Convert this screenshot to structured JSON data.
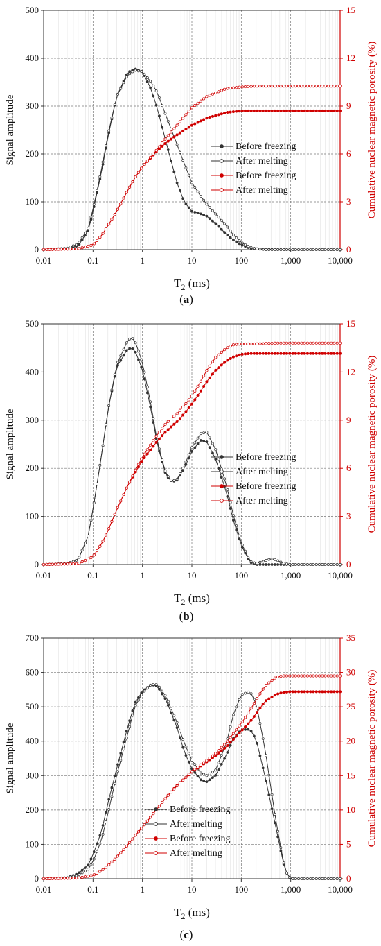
{
  "chart_data": [
    {
      "type": "line",
      "panel_label": "a",
      "x_scale": "log",
      "xlim": [
        0.01,
        10000
      ],
      "x_ticks": [
        "0.01",
        "0.1",
        "1",
        "10",
        "100",
        "1,000",
        "10,000"
      ],
      "xlabel_main": "T",
      "xlabel_sub": "2",
      "xlabel_tail": " (ms)",
      "ylabel_left": "Signal amplitude",
      "ylim_left": [
        0,
        500
      ],
      "y_ticks_left": [
        "0",
        "100",
        "200",
        "300",
        "400",
        "500"
      ],
      "ylabel_right": "Cumulative nuclear magnetic porosity (%)",
      "ylim_right": [
        0,
        15
      ],
      "y_ticks_right": [
        "0",
        "3",
        "6",
        "9",
        "12",
        "15"
      ],
      "grid": true,
      "legend_placement": "center-right",
      "colors": {
        "black": "#333333",
        "red": "#d00000"
      },
      "series": [
        {
          "name": "Before freezing",
          "axis": "left",
          "color": "#333333",
          "marker": "filled",
          "x": [
            0.01,
            0.03,
            0.05,
            0.08,
            0.1,
            0.15,
            0.2,
            0.3,
            0.5,
            0.7,
            1,
            1.5,
            2,
            3,
            5,
            7,
            10,
            15,
            20,
            30,
            50,
            70,
            100,
            150,
            200,
            300,
            1000,
            10000
          ],
          "y": [
            0,
            2,
            8,
            40,
            80,
            165,
            235,
            320,
            370,
            378,
            372,
            335,
            295,
            225,
            140,
            100,
            80,
            75,
            70,
            55,
            32,
            20,
            10,
            3,
            2,
            1,
            0,
            0
          ]
        },
        {
          "name": "After melting",
          "axis": "left",
          "color": "#333333",
          "marker": "open",
          "x": [
            0.01,
            0.03,
            0.05,
            0.08,
            0.1,
            0.15,
            0.2,
            0.3,
            0.5,
            0.7,
            1,
            1.5,
            2,
            3,
            5,
            7,
            10,
            15,
            20,
            30,
            50,
            70,
            100,
            150,
            200,
            300,
            1000,
            10000
          ],
          "y": [
            0,
            3,
            12,
            45,
            85,
            170,
            240,
            320,
            365,
            375,
            372,
            350,
            328,
            280,
            220,
            180,
            140,
            112,
            95,
            75,
            50,
            30,
            15,
            5,
            2,
            0,
            0,
            0
          ]
        },
        {
          "name": "Before freezing",
          "axis": "right",
          "color": "#d00000",
          "marker": "filled",
          "x": [
            0.01,
            0.05,
            0.1,
            0.15,
            0.2,
            0.3,
            0.5,
            0.7,
            1,
            2,
            3,
            5,
            10,
            20,
            50,
            100,
            200,
            10000
          ],
          "y": [
            0,
            0.05,
            0.3,
            0.9,
            1.5,
            2.4,
            3.7,
            4.5,
            5.2,
            6.2,
            6.7,
            7.2,
            7.8,
            8.25,
            8.6,
            8.7,
            8.7,
            8.7
          ]
        },
        {
          "name": "After melting",
          "axis": "right",
          "color": "#d00000",
          "marker": "open",
          "x": [
            0.01,
            0.05,
            0.1,
            0.15,
            0.2,
            0.3,
            0.5,
            0.7,
            1,
            2,
            3,
            5,
            10,
            20,
            50,
            100,
            200,
            10000
          ],
          "y": [
            0,
            0.05,
            0.3,
            0.9,
            1.5,
            2.4,
            3.7,
            4.5,
            5.2,
            6.3,
            7.0,
            7.8,
            8.9,
            9.6,
            10.1,
            10.2,
            10.25,
            10.25
          ]
        }
      ]
    },
    {
      "type": "line",
      "panel_label": "b",
      "x_scale": "log",
      "xlim": [
        0.01,
        10000
      ],
      "x_ticks": [
        "0.01",
        "0.1",
        "1",
        "10",
        "100",
        "1,000",
        "10,000"
      ],
      "xlabel_main": "T",
      "xlabel_sub": "2",
      "xlabel_tail": " (ms)",
      "ylabel_left": "Signal amplitude",
      "ylim_left": [
        0,
        500
      ],
      "y_ticks_left": [
        "0",
        "100",
        "200",
        "300",
        "400",
        "500"
      ],
      "ylabel_right": "Cumulative nuclear magnetic porosity (%)",
      "ylim_right": [
        0,
        15
      ],
      "y_ticks_right": [
        "0",
        "3",
        "6",
        "9",
        "12",
        "15"
      ],
      "grid": true,
      "legend_placement": "center-right",
      "colors": {
        "black": "#333333",
        "red": "#d00000"
      },
      "series": [
        {
          "name": "Before freezing",
          "axis": "left",
          "color": "#333333",
          "marker": "filled",
          "x": [
            0.01,
            0.03,
            0.05,
            0.08,
            0.1,
            0.15,
            0.2,
            0.3,
            0.5,
            0.6,
            0.7,
            1,
            1.5,
            2,
            3,
            4,
            5,
            7,
            10,
            15,
            20,
            30,
            50,
            70,
            100,
            150,
            200,
            1000,
            10000
          ],
          "y": [
            0,
            2,
            10,
            60,
            115,
            230,
            320,
            410,
            448,
            450,
            445,
            405,
            320,
            250,
            185,
            172,
            175,
            200,
            235,
            258,
            255,
            220,
            150,
            90,
            40,
            5,
            0,
            0,
            0
          ]
        },
        {
          "name": "After melting",
          "axis": "left",
          "color": "#333333",
          "marker": "open",
          "x": [
            0.01,
            0.03,
            0.05,
            0.08,
            0.1,
            0.15,
            0.2,
            0.3,
            0.5,
            0.6,
            0.7,
            1,
            1.5,
            2,
            3,
            4,
            5,
            7,
            10,
            15,
            20,
            30,
            50,
            70,
            100,
            150,
            200,
            300,
            400,
            500,
            700,
            1000,
            10000
          ],
          "y": [
            0,
            2,
            10,
            60,
            115,
            230,
            320,
            415,
            465,
            472,
            465,
            420,
            330,
            255,
            188,
            173,
            177,
            205,
            243,
            272,
            275,
            240,
            165,
            100,
            45,
            7,
            2,
            8,
            12,
            10,
            3,
            0,
            0
          ]
        },
        {
          "name": "Before freezing",
          "axis": "right",
          "color": "#d00000",
          "marker": "filled",
          "x": [
            0.01,
            0.05,
            0.1,
            0.15,
            0.2,
            0.3,
            0.5,
            0.7,
            1,
            2,
            3,
            5,
            7,
            10,
            15,
            20,
            30,
            50,
            70,
            100,
            150,
            200,
            500,
            10000
          ],
          "y": [
            0,
            0.05,
            0.5,
            1.3,
            2.1,
            3.4,
            4.9,
            5.7,
            6.5,
            7.7,
            8.3,
            8.9,
            9.4,
            10.0,
            10.8,
            11.4,
            12.1,
            12.7,
            12.95,
            13.1,
            13.15,
            13.15,
            13.15,
            13.15
          ]
        },
        {
          "name": "After melting",
          "axis": "right",
          "color": "#d00000",
          "marker": "open",
          "x": [
            0.01,
            0.05,
            0.1,
            0.15,
            0.2,
            0.3,
            0.5,
            0.7,
            1,
            2,
            3,
            5,
            7,
            10,
            15,
            20,
            30,
            50,
            70,
            100,
            150,
            200,
            500,
            10000
          ],
          "y": [
            0,
            0.05,
            0.5,
            1.3,
            2.1,
            3.4,
            4.9,
            5.8,
            6.7,
            8.1,
            8.8,
            9.4,
            9.9,
            10.5,
            11.4,
            12.1,
            12.9,
            13.5,
            13.7,
            13.75,
            13.75,
            13.75,
            13.8,
            13.8
          ]
        }
      ]
    },
    {
      "type": "line",
      "panel_label": "c",
      "x_scale": "log",
      "xlim": [
        0.01,
        10000
      ],
      "x_ticks": [
        "0.01",
        "0.1",
        "1",
        "10",
        "100",
        "1,000",
        "10,000"
      ],
      "xlabel_main": "T",
      "xlabel_sub": "2",
      "xlabel_tail": " (ms)",
      "ylabel_left": "Signal amplitude",
      "ylim_left": [
        0,
        700
      ],
      "y_ticks_left": [
        "0",
        "100",
        "200",
        "300",
        "400",
        "500",
        "600",
        "700"
      ],
      "ylabel_right": "Cumulative nuclear magnetic porosity (%)",
      "ylim_right": [
        0,
        35
      ],
      "y_ticks_right": [
        "0",
        "5",
        "10",
        "15",
        "20",
        "25",
        "30",
        "35"
      ],
      "grid": true,
      "legend_placement": "bottom-center",
      "colors": {
        "black": "#333333",
        "red": "#d00000"
      },
      "series": [
        {
          "name": "Before freezing",
          "axis": "left",
          "color": "#333333",
          "marker": "filled",
          "x": [
            0.01,
            0.03,
            0.05,
            0.08,
            0.1,
            0.15,
            0.2,
            0.3,
            0.5,
            0.7,
            1,
            1.5,
            2,
            3,
            5,
            7,
            10,
            15,
            20,
            30,
            50,
            70,
            100,
            150,
            200,
            300,
            500,
            700,
            800,
            1000,
            10000
          ],
          "y": [
            0,
            3,
            15,
            40,
            70,
            140,
            220,
            320,
            440,
            510,
            545,
            565,
            560,
            520,
            440,
            370,
            320,
            288,
            282,
            300,
            360,
            410,
            433,
            435,
            405,
            300,
            150,
            50,
            20,
            0,
            0
          ]
        },
        {
          "name": "After melting",
          "axis": "left",
          "color": "#333333",
          "marker": "open",
          "x": [
            0.01,
            0.03,
            0.05,
            0.08,
            0.1,
            0.15,
            0.2,
            0.3,
            0.5,
            0.7,
            1,
            1.5,
            2,
            3,
            5,
            7,
            10,
            15,
            20,
            30,
            50,
            70,
            100,
            150,
            200,
            300,
            500,
            700,
            800,
            1000,
            10000
          ],
          "y": [
            0,
            3,
            10,
            28,
            50,
            115,
            190,
            300,
            420,
            500,
            540,
            565,
            565,
            530,
            455,
            395,
            345,
            308,
            300,
            315,
            395,
            480,
            535,
            545,
            510,
            380,
            170,
            55,
            20,
            0,
            0
          ]
        },
        {
          "name": "Before freezing",
          "axis": "right",
          "color": "#d00000",
          "marker": "filled",
          "x": [
            0.01,
            0.05,
            0.1,
            0.15,
            0.2,
            0.3,
            0.5,
            0.7,
            1,
            2,
            3,
            5,
            10,
            20,
            30,
            50,
            100,
            150,
            200,
            300,
            500,
            700,
            1000,
            10000
          ],
          "y": [
            0,
            0.1,
            0.5,
            1.2,
            1.9,
            3.1,
            4.9,
            6.2,
            7.5,
            10.2,
            11.8,
            13.6,
            15.5,
            17.0,
            17.9,
            19.2,
            21.5,
            22.8,
            24.0,
            25.8,
            26.8,
            27.1,
            27.2,
            27.2
          ]
        },
        {
          "name": "After melting",
          "axis": "right",
          "color": "#d00000",
          "marker": "open",
          "x": [
            0.01,
            0.05,
            0.1,
            0.15,
            0.2,
            0.3,
            0.5,
            0.7,
            1,
            2,
            3,
            5,
            10,
            20,
            30,
            50,
            100,
            150,
            200,
            300,
            500,
            700,
            1000,
            10000
          ],
          "y": [
            0,
            0.1,
            0.5,
            1.2,
            1.9,
            3.1,
            4.9,
            6.2,
            7.5,
            10.2,
            11.8,
            13.5,
            15.6,
            17.2,
            18.2,
            19.8,
            22.6,
            24.5,
            26.0,
            28.0,
            29.3,
            29.5,
            29.5,
            29.5
          ]
        }
      ]
    }
  ]
}
